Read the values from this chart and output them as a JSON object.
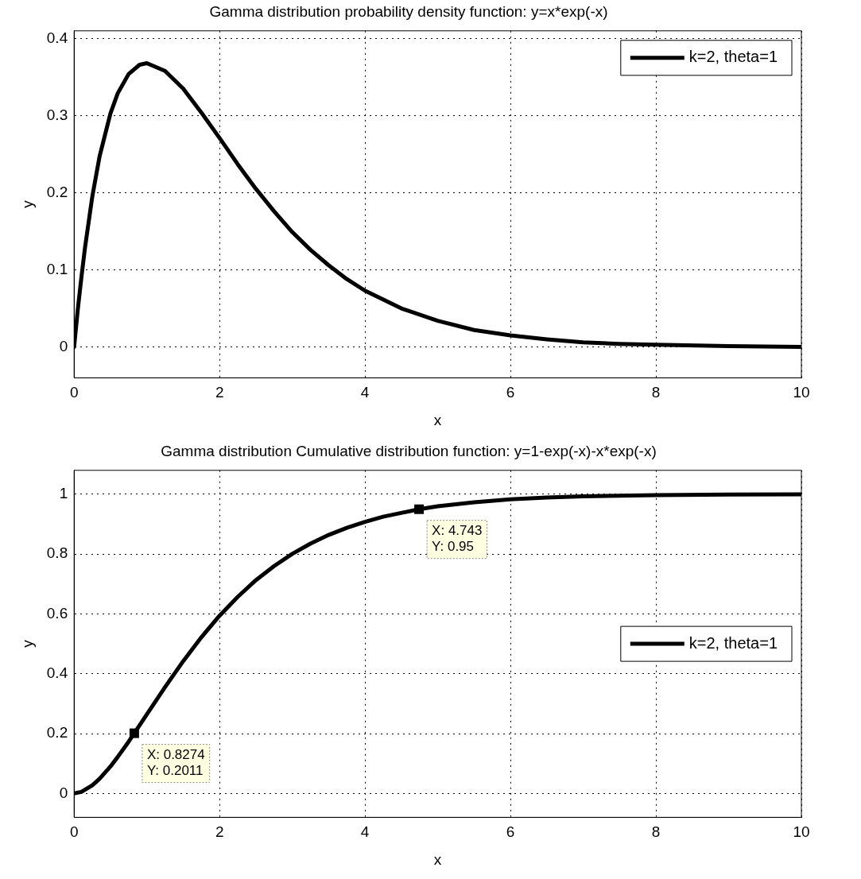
{
  "chart_data": [
    {
      "type": "line",
      "title": "Gamma distribution probability density function: y=x*exp(-x)",
      "xlabel": "x",
      "ylabel": "y",
      "x": [
        0,
        0.05,
        0.1,
        0.15,
        0.25,
        0.35,
        0.5,
        0.6,
        0.75,
        0.9,
        1,
        1.25,
        1.5,
        1.75,
        2,
        2.25,
        2.5,
        2.75,
        3,
        3.25,
        3.5,
        3.75,
        4,
        4.5,
        5,
        5.5,
        6,
        6.5,
        7,
        7.5,
        8,
        9,
        10
      ],
      "series": [
        {
          "name": "k=2, theta=1",
          "color": "#000000",
          "values": [
            0,
            0.048,
            0.09,
            0.129,
            0.195,
            0.247,
            0.303,
            0.329,
            0.354,
            0.366,
            0.368,
            0.358,
            0.335,
            0.304,
            0.271,
            0.237,
            0.205,
            0.176,
            0.149,
            0.126,
            0.106,
            0.088,
            0.073,
            0.05,
            0.034,
            0.022,
            0.015,
            0.01,
            0.006,
            0.004,
            0.003,
            0.001,
            0
          ]
        }
      ],
      "xlim": [
        0,
        10
      ],
      "xticks": [
        0,
        2,
        4,
        6,
        8,
        10
      ],
      "ylim": [
        -0.04,
        0.41
      ],
      "yticks": [
        0,
        0.1,
        0.2,
        0.3,
        0.4
      ],
      "grid": true,
      "legend": "top right",
      "marker": "none",
      "line_style": "solid"
    },
    {
      "type": "line",
      "title": "Gamma distribution Cumulative distribution function: y=1-exp(-x)-x*exp(-x)",
      "xlabel": "x",
      "ylabel": "y",
      "x": [
        0,
        0.1,
        0.25,
        0.35,
        0.5,
        0.6,
        0.75,
        0.8274,
        1,
        1.25,
        1.5,
        1.75,
        2,
        2.25,
        2.5,
        2.75,
        3,
        3.25,
        3.5,
        3.75,
        4,
        4.25,
        4.743,
        5,
        5.5,
        6,
        6.5,
        7,
        8,
        9,
        10
      ],
      "series": [
        {
          "name": "k=2, theta=1",
          "color": "#000000",
          "values": [
            0,
            0.005,
            0.027,
            0.049,
            0.09,
            0.122,
            0.173,
            0.201,
            0.264,
            0.355,
            0.442,
            0.522,
            0.594,
            0.657,
            0.713,
            0.76,
            0.801,
            0.835,
            0.864,
            0.888,
            0.908,
            0.925,
            0.95,
            0.96,
            0.973,
            0.983,
            0.989,
            0.993,
            0.997,
            0.999,
            1
          ]
        }
      ],
      "annotations": [
        {
          "text": "X: 0.8274\nY: 0.2011",
          "x": 0.8274,
          "y": 0.2011
        },
        {
          "text": "X: 4.743\nY: 0.95",
          "x": 4.743,
          "y": 0.95
        }
      ],
      "xlim": [
        0,
        10
      ],
      "xticks": [
        0,
        2,
        4,
        6,
        8,
        10
      ],
      "ylim": [
        -0.08,
        1.08
      ],
      "yticks": [
        0,
        0.2,
        0.4,
        0.6,
        0.8,
        1
      ],
      "grid": true,
      "legend": "right",
      "marker": "none",
      "line_style": "solid"
    }
  ]
}
